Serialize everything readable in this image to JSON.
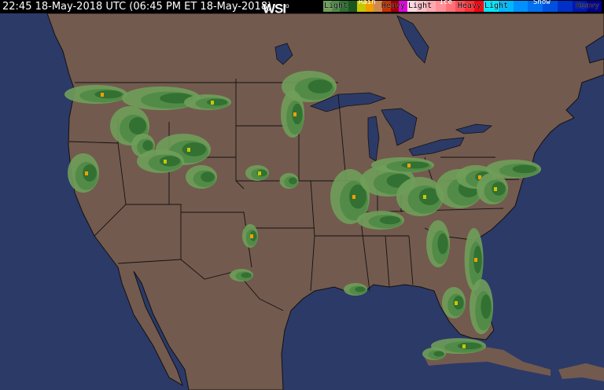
{
  "header": {
    "timestamp": "22:45 18-May-2018 UTC  (06:45 PM ET 18-May-2018)",
    "logo": "WSI"
  },
  "legend": [
    {
      "title": "Rain",
      "light": "Light",
      "heavy": "Heavy",
      "colors": [
        "#6f9e5a",
        "#4f8a46",
        "#2f6e30",
        "#1c5420",
        "#c8c800",
        "#f0a000",
        "#d08a50",
        "#c83000",
        "#a00000",
        "#e000e0"
      ]
    },
    {
      "title": "Ice",
      "light": "Light",
      "heavy": "Heavy",
      "colors": [
        "#ffd8e0",
        "#ffc0c8",
        "#ffa8b0",
        "#ff9098",
        "#ff7078",
        "#ff5058",
        "#ff3038",
        "#ff0010"
      ]
    },
    {
      "title": "Snow",
      "light": "Light",
      "heavy": "Heavy",
      "colors": [
        "#00e8ff",
        "#00b8ff",
        "#0090ff",
        "#0070f0",
        "#0050e0",
        "#0030c8",
        "#0018b0",
        "#000090"
      ]
    }
  ],
  "colors": {
    "ocean": "#2c3a68",
    "land": "#735a4e",
    "lakes": "#2c3a68",
    "borders": "#111111"
  }
}
